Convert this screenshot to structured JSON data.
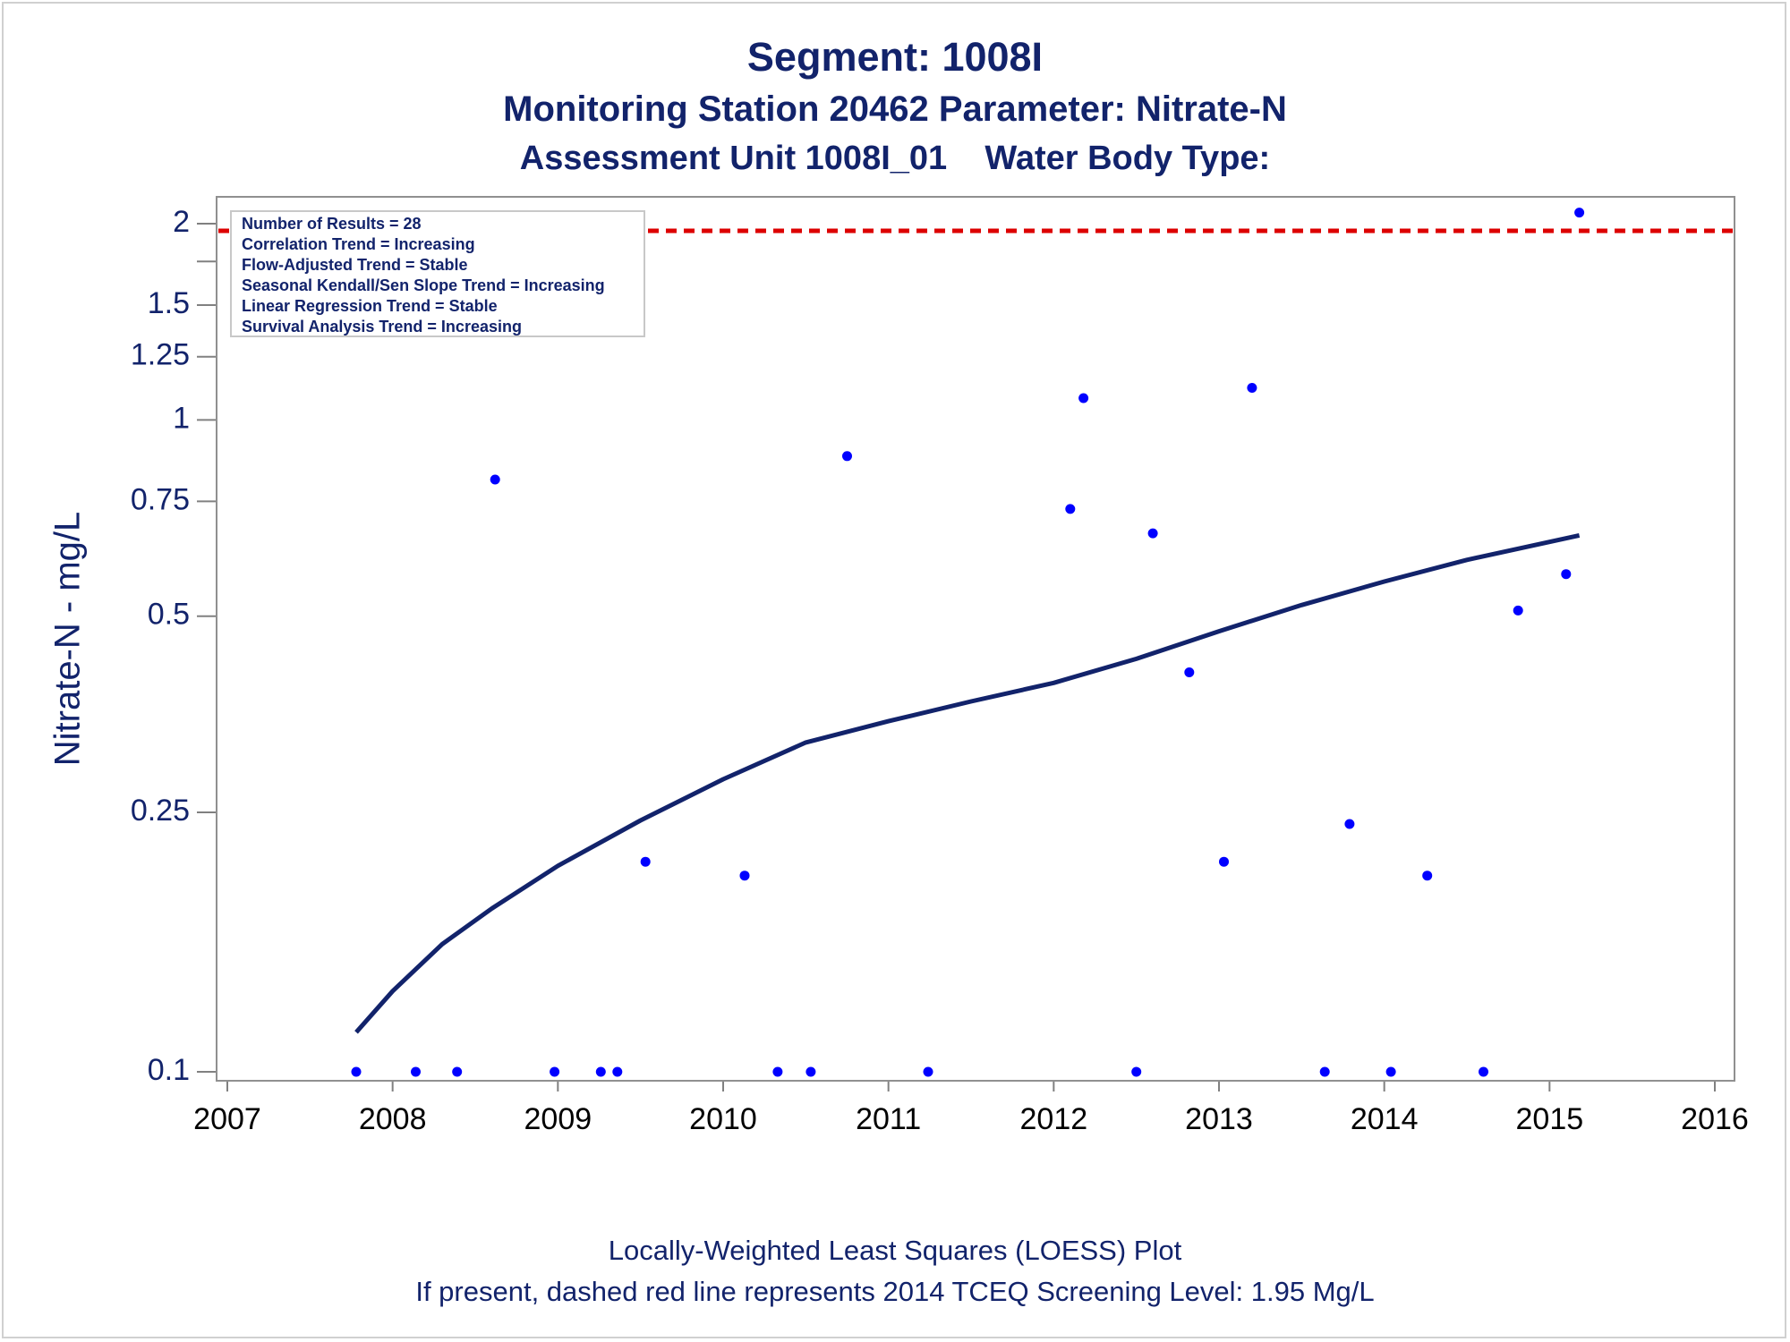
{
  "chart_data": {
    "type": "scatter",
    "title": "Segment: 1008I",
    "subtitle": "Monitoring Station 20462 Parameter: Nitrate-N",
    "subtitle2": "Assessment Unit 1008I_01    Water Body Type:",
    "ylabel": "Nitrate-N - mg/L",
    "xlabel": "",
    "y_scale": "log",
    "xlim": [
      2007,
      2016
    ],
    "ylim": [
      0.097,
      2.25
    ],
    "x_ticks": [
      "2007",
      "2008",
      "2009",
      "2010",
      "2011",
      "2012",
      "2013",
      "2014",
      "2015",
      "2016"
    ],
    "y_ticks": [
      {
        "value": 0.1,
        "label": "0.1"
      },
      {
        "value": 0.25,
        "label": "0.25"
      },
      {
        "value": 0.5,
        "label": "0.5"
      },
      {
        "value": 0.75,
        "label": "0.75"
      },
      {
        "value": 1,
        "label": "1"
      },
      {
        "value": 1.25,
        "label": "1.25"
      },
      {
        "value": 1.5,
        "label": "1.5"
      },
      {
        "value": 2,
        "label": "2"
      }
    ],
    "extra_y_ticks": [
      1.75
    ],
    "grid": false,
    "legend_position": "top-left",
    "stats_box": [
      "Number of Results = 28",
      "Correlation Trend = Increasing",
      "Flow-Adjusted Trend = Stable",
      "Seasonal Kendall/Sen Slope Trend = Increasing",
      "Linear Regression Trend = Stable",
      "Survival Analysis Trend = Increasing"
    ],
    "screening_level": {
      "value": 1.95,
      "style": "dashed",
      "color": "#dd0000"
    },
    "points": [
      {
        "x": 2007.78,
        "y": 0.1
      },
      {
        "x": 2008.14,
        "y": 0.1
      },
      {
        "x": 2008.39,
        "y": 0.1
      },
      {
        "x": 2008.62,
        "y": 0.81
      },
      {
        "x": 2008.98,
        "y": 0.1
      },
      {
        "x": 2009.26,
        "y": 0.1
      },
      {
        "x": 2009.36,
        "y": 0.1
      },
      {
        "x": 2009.53,
        "y": 0.21
      },
      {
        "x": 2010.13,
        "y": 0.2
      },
      {
        "x": 2010.33,
        "y": 0.1
      },
      {
        "x": 2010.53,
        "y": 0.1
      },
      {
        "x": 2010.75,
        "y": 0.88
      },
      {
        "x": 2011.24,
        "y": 0.1
      },
      {
        "x": 2012.1,
        "y": 0.73
      },
      {
        "x": 2012.18,
        "y": 1.08
      },
      {
        "x": 2012.5,
        "y": 0.1
      },
      {
        "x": 2012.6,
        "y": 0.67
      },
      {
        "x": 2012.82,
        "y": 0.41
      },
      {
        "x": 2013.03,
        "y": 0.21
      },
      {
        "x": 2013.2,
        "y": 1.12
      },
      {
        "x": 2013.64,
        "y": 0.1
      },
      {
        "x": 2013.79,
        "y": 0.24
      },
      {
        "x": 2014.04,
        "y": 0.1
      },
      {
        "x": 2014.26,
        "y": 0.2
      },
      {
        "x": 2014.6,
        "y": 0.1
      },
      {
        "x": 2014.81,
        "y": 0.51
      },
      {
        "x": 2015.1,
        "y": 0.58
      },
      {
        "x": 2015.18,
        "y": 2.08
      }
    ],
    "loess": [
      {
        "x": 2007.78,
        "y": 0.115
      },
      {
        "x": 2008.0,
        "y": 0.133
      },
      {
        "x": 2008.3,
        "y": 0.157
      },
      {
        "x": 2008.6,
        "y": 0.178
      },
      {
        "x": 2009.0,
        "y": 0.207
      },
      {
        "x": 2009.5,
        "y": 0.243
      },
      {
        "x": 2010.0,
        "y": 0.281
      },
      {
        "x": 2010.5,
        "y": 0.32
      },
      {
        "x": 2011.0,
        "y": 0.345
      },
      {
        "x": 2011.5,
        "y": 0.37
      },
      {
        "x": 2012.0,
        "y": 0.395
      },
      {
        "x": 2012.5,
        "y": 0.43
      },
      {
        "x": 2013.0,
        "y": 0.474
      },
      {
        "x": 2013.5,
        "y": 0.52
      },
      {
        "x": 2014.0,
        "y": 0.565
      },
      {
        "x": 2014.5,
        "y": 0.61
      },
      {
        "x": 2015.0,
        "y": 0.65
      },
      {
        "x": 2015.18,
        "y": 0.665
      }
    ],
    "colors": {
      "points": "#0000ff",
      "loess": "#12236b",
      "screening_line": "#dd0000",
      "text": "#12236b"
    }
  },
  "footer": {
    "line1": "Locally-Weighted Least Squares (LOESS) Plot",
    "line2": "If present, dashed red line represents 2014 TCEQ Screening Level: 1.95 Mg/L"
  }
}
